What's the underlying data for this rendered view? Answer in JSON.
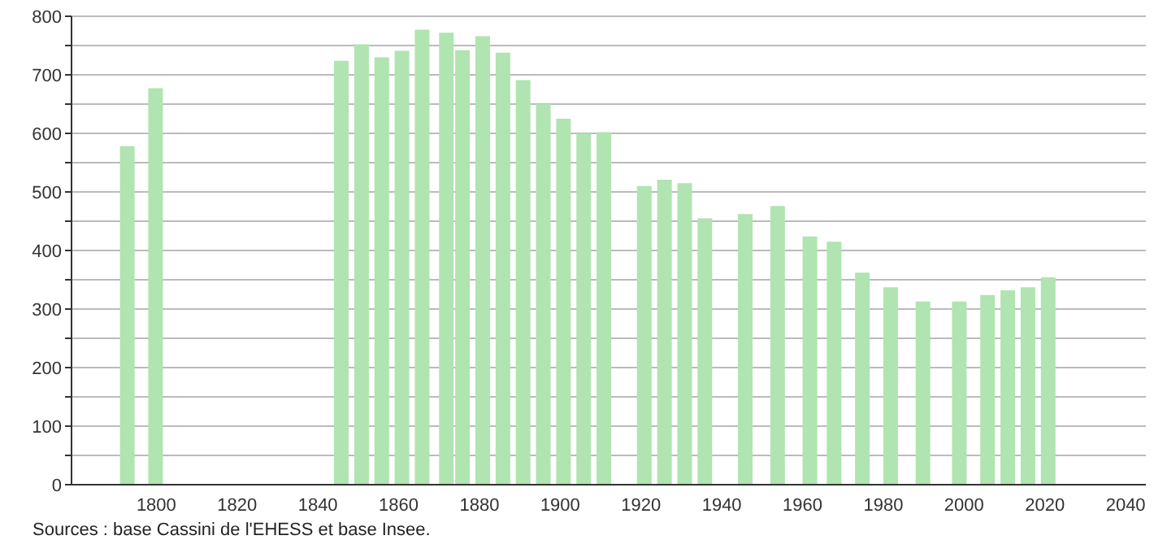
{
  "chart_data": {
    "type": "bar",
    "x": [
      1793,
      1800,
      1846,
      1851,
      1856,
      1861,
      1866,
      1872,
      1876,
      1881,
      1886,
      1891,
      1896,
      1901,
      1906,
      1911,
      1921,
      1926,
      1931,
      1936,
      1946,
      1954,
      1962,
      1968,
      1975,
      1982,
      1990,
      1999,
      2006,
      2011,
      2016,
      2021
    ],
    "values": [
      578,
      677,
      724,
      752,
      730,
      741,
      777,
      772,
      742,
      766,
      738,
      691,
      650,
      625,
      600,
      602,
      510,
      521,
      515,
      455,
      462,
      476,
      424,
      415,
      362,
      337,
      313,
      313,
      324,
      332,
      337,
      354
    ],
    "color": "#b0e4b0",
    "xlim": [
      1779,
      2045
    ],
    "xticks": [
      1800,
      1820,
      1840,
      1860,
      1880,
      1900,
      1920,
      1940,
      1960,
      1980,
      2000,
      2020,
      2040
    ],
    "ylim": [
      0,
      800
    ],
    "yticks": [
      0,
      {
        "value": 50,
        "label": null
      },
      100,
      {
        "value": 150,
        "label": null
      },
      200,
      {
        "value": 250,
        "label": null
      },
      300,
      {
        "value": 350,
        "label": null
      },
      400,
      {
        "value": 450,
        "label": null
      },
      500,
      {
        "value": 550,
        "label": null
      },
      600,
      {
        "value": 650,
        "label": null
      },
      700,
      {
        "value": 750,
        "label": null
      },
      800
    ],
    "grid": "y",
    "annotations": [
      "Sources : base Cassini de l'EHESS et base Insee."
    ]
  }
}
